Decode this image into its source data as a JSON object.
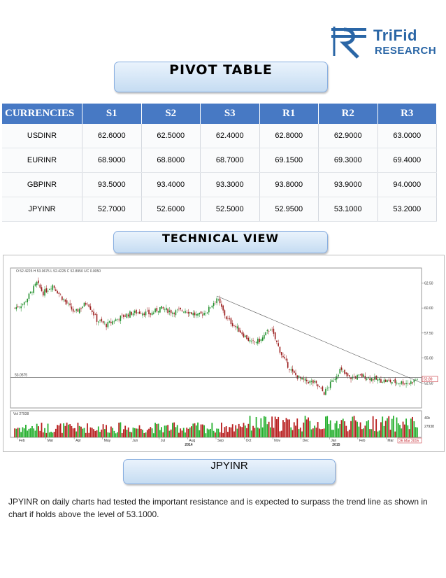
{
  "logo": {
    "brand": "TriFid",
    "sub": "RESEARCH"
  },
  "pivot_title": "PIVOT TABLE",
  "table": {
    "headers": [
      "CURRENCIES",
      "S1",
      "S2",
      "S3",
      "R1",
      "R2",
      "R3"
    ],
    "rows": [
      [
        "USDINR",
        "62.6000",
        "62.5000",
        "62.4000",
        "62.8000",
        "62.9000",
        "63.0000"
      ],
      [
        "EURINR",
        "68.9000",
        "68.8000",
        "68.7000",
        "69.1500",
        "69.3000",
        "69.4000"
      ],
      [
        "GBPINR",
        "93.5000",
        "93.4000",
        "93.3000",
        "93.8000",
        "93.9000",
        "94.0000"
      ],
      [
        "JPYINR",
        "52.7000",
        "52.6000",
        "52.5000",
        "52.9500",
        "53.1000",
        "53.2000"
      ]
    ]
  },
  "technical_title": "TECHNICAL VIEW",
  "chart_data": {
    "type": "candlestick",
    "ohlc_readout": "O 52.4225  H 53.0675  L 52.4225  C 52.8950  UC 0.0050",
    "level_label": "53.0575",
    "level_value": 53.0575,
    "last_price_label": "52.89",
    "last_date_label": "26 Mar 2015",
    "y_ticks": [
      "62.50",
      "60.00",
      "57.50",
      "55.00",
      "52.50"
    ],
    "vol_label": "Vol 27938",
    "vol_value_label": "27938",
    "vol_tick": "40k",
    "x_months": [
      "Feb",
      "Mar",
      "Apr",
      "May",
      "Jun",
      "Jul",
      "Aug",
      "Sep",
      "Oct",
      "Nov",
      "Dec",
      "Jan",
      "Feb",
      "Mar"
    ],
    "x_years": [
      "2014",
      "2015"
    ],
    "ylim": [
      50,
      64
    ],
    "anchors": [
      [
        0,
        60.0
      ],
      [
        6,
        60.5
      ],
      [
        14,
        62.5
      ],
      [
        18,
        61.5
      ],
      [
        24,
        62.3
      ],
      [
        30,
        61.0
      ],
      [
        38,
        59.5
      ],
      [
        46,
        60.6
      ],
      [
        52,
        58.8
      ],
      [
        58,
        58.3
      ],
      [
        66,
        59.0
      ],
      [
        74,
        59.5
      ],
      [
        80,
        59.6
      ],
      [
        86,
        59.4
      ],
      [
        92,
        60.0
      ],
      [
        100,
        59.6
      ],
      [
        108,
        59.8
      ],
      [
        116,
        59.2
      ],
      [
        122,
        59.7
      ],
      [
        128,
        61.0
      ],
      [
        134,
        59.0
      ],
      [
        142,
        57.8
      ],
      [
        150,
        56.5
      ],
      [
        156,
        56.8
      ],
      [
        162,
        58.0
      ],
      [
        166,
        56.5
      ],
      [
        170,
        55.0
      ],
      [
        176,
        53.5
      ],
      [
        182,
        52.8
      ],
      [
        190,
        52.5
      ],
      [
        196,
        51.5
      ],
      [
        200,
        52.4
      ],
      [
        206,
        53.8
      ],
      [
        212,
        53.0
      ],
      [
        220,
        53.2
      ],
      [
        230,
        52.8
      ],
      [
        240,
        52.6
      ],
      [
        250,
        52.5
      ],
      [
        255,
        52.9
      ]
    ],
    "total_bars": 256
  },
  "section_title": "JPYINR",
  "paragraph": "JPYINR on daily charts had tested the important resistance and is expected to surpass the trend line as shown in chart if holds above the level of 53.1000."
}
